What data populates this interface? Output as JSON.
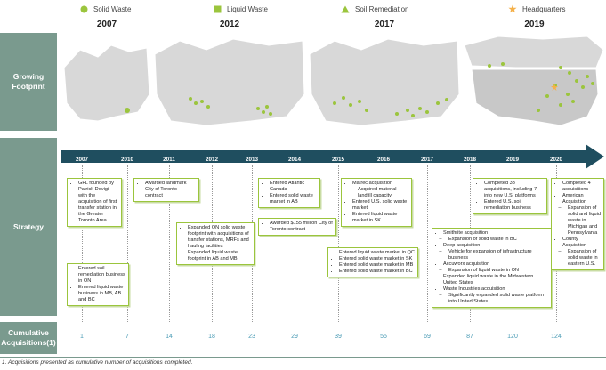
{
  "legend": {
    "solid": "Solid Waste",
    "liquid": "Liquid Waste",
    "soil": "Soil Remediation",
    "hq": "Headquarters"
  },
  "colors": {
    "green": "#9bc53d",
    "sidebar": "#7a9a8e",
    "timeline": "#1f4e5f",
    "star": "#f5b14a"
  },
  "sidebar": {
    "growing": "Growing Footprint",
    "strategy": "Strategy",
    "cumulative": "Cumulative Acquisitions(1)"
  },
  "maps": [
    {
      "year": "2007"
    },
    {
      "year": "2012"
    },
    {
      "year": "2017"
    },
    {
      "year": "2019"
    }
  ],
  "timeline_years": [
    "2007",
    "2010",
    "2011",
    "2012",
    "2013",
    "2014",
    "2015",
    "2016",
    "2017",
    "2018",
    "2019",
    "2020"
  ],
  "cumulative": [
    "1",
    "7",
    "14",
    "18",
    "23",
    "29",
    "39",
    "55",
    "69",
    "87",
    "120",
    "124"
  ],
  "boxes": {
    "b2007": [
      "GFL founded by Patrick Dovigi with the acquisition of first transfer station in the Greater Toronto Area"
    ],
    "b2010": [
      "Entered soil remediation business in ON",
      "Entered liquid waste business in MB, AB and BC"
    ],
    "b2011": [
      "Awarded landmark City of Toronto contract"
    ],
    "b2012": [
      "Expanded ON solid waste footprint with acquisitions of transfer stations, MRFs and hauling facilities",
      "Expanded liquid waste footprint in AB and MB"
    ],
    "b2014a": [
      "Entered Atlantic Canada",
      "Entered solid waste market in AB"
    ],
    "b2014b": [
      "Awarded $155 million City of Toronto contract"
    ],
    "b2016a": [
      "Matrec acquisition",
      "Acquired material landfill capacity",
      "Entered U.S. solid waste market",
      "Entered liquid waste market in SK"
    ],
    "b2016b": [
      "Entered liquid waste market in QC",
      "Entered solid waste market in SK",
      "Entered solid waste market in MB",
      "Entered solid waste market in BC"
    ],
    "b2018": [
      "Smithrite acquisition",
      "Expansion of solid waste in BC",
      "Deep acquisition",
      "Vehicle for expansion of infrastructure business",
      "Accuworx acquisition",
      "Expansion of liquid waste in ON",
      "Expanded liquid waste in the Midwestern United States",
      "Waste Industries acquisition",
      "Significantly expanded solid waste platform into United States"
    ],
    "b2019": [
      "Completed 33 acquisitions, including 7 into new U.S. platforms",
      "Entered U.S. soil remediation business"
    ],
    "b2020": [
      "Completed 4 acquisitions",
      "American Acquisition",
      "Expansion of solid and liquid waste in Michigan and Pennsylvania",
      "County Acquisition",
      "Expansion of solid waste in eastern U.S."
    ]
  },
  "footnote": "1.   Acquisitions presented as cumulative number of acquisitions completed."
}
